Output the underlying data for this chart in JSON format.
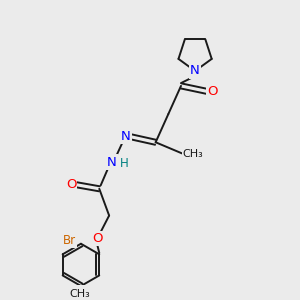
{
  "bg_color": "#ebebeb",
  "colors": {
    "bond": "#1a1a1a",
    "N": "#0000ff",
    "O": "#ff0000",
    "Br": "#cc6600",
    "H": "#008080",
    "C": "#1a1a1a"
  },
  "bond_lw": 1.4,
  "font_size": 8.5
}
